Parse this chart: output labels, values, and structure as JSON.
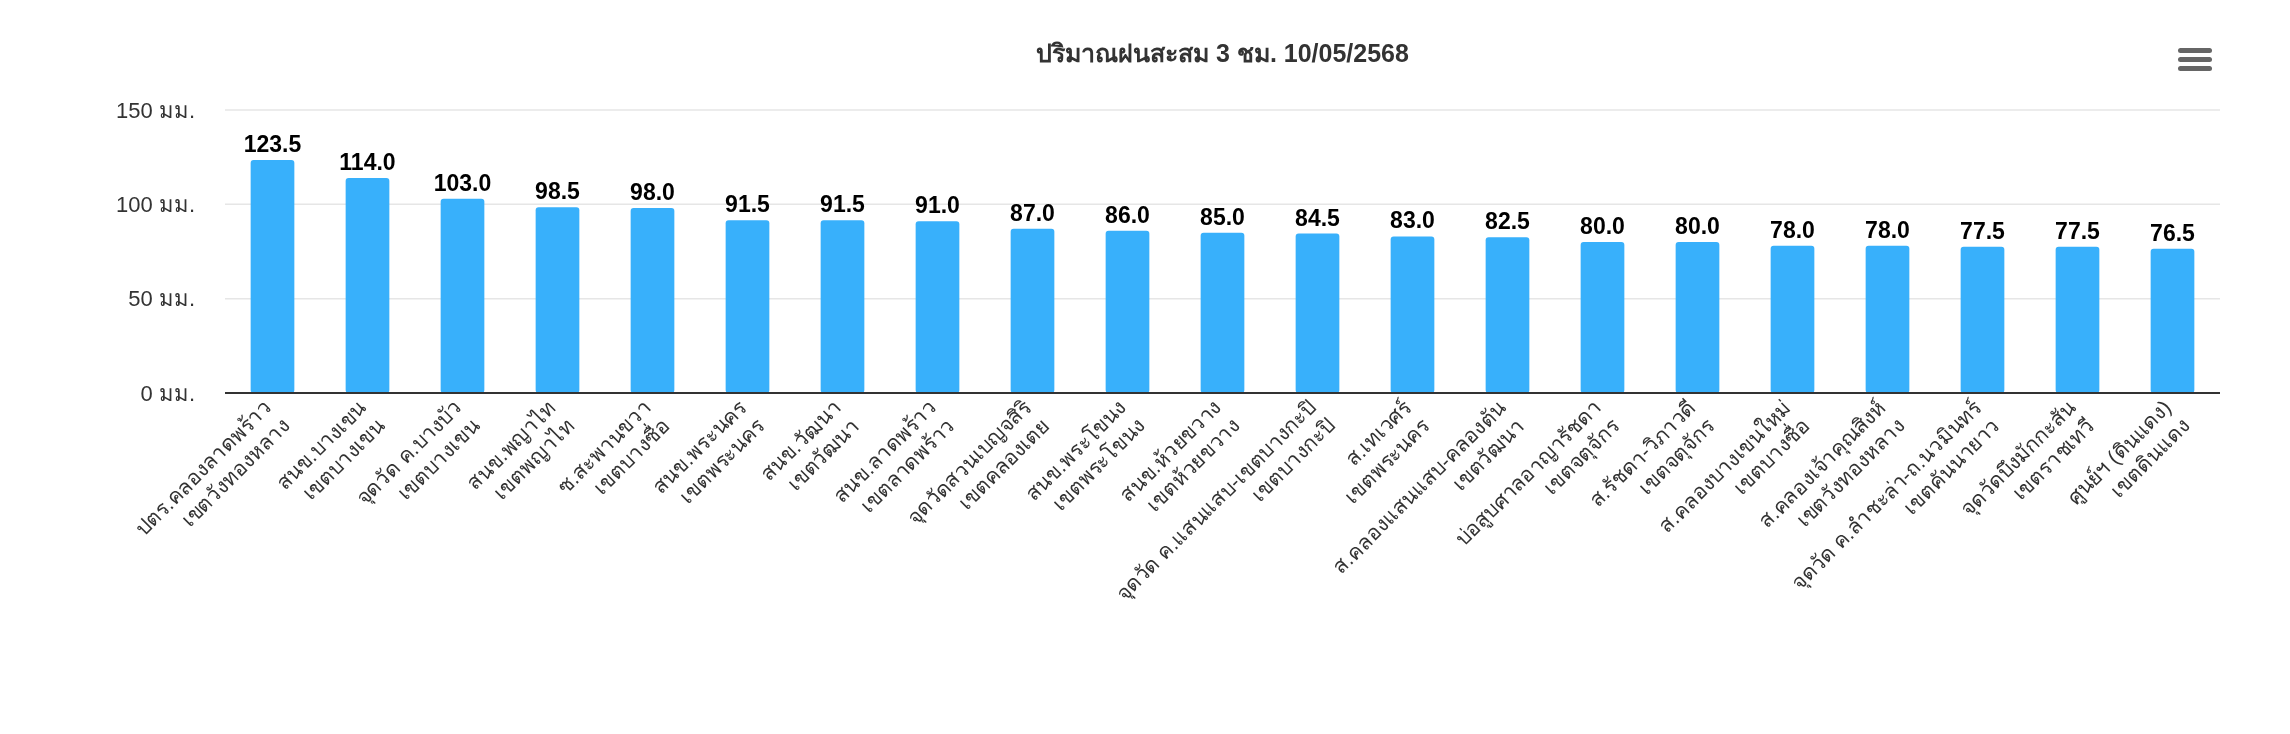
{
  "chart_data": {
    "type": "bar",
    "title": "ปริมาณฝนสะสม 3 ชม. 10/05/2568",
    "categories": [
      "ปตร.คลองลาดพร้าว\nเขตวังทองหลาง",
      "สนข.บางเขน\nเขตบางเขน",
      "จุดวัด ค.บางบัว\nเขตบางเขน",
      "สนข.พญาไท\nเขตพญาไท",
      "ซ.สะพานขวา\nเขตบางซื่อ",
      "สนข.พระนคร\nเขตพระนคร",
      "สนข.วัฒนา\nเขตวัฒนา",
      "สนข.ลาดพร้าว\nเขตลาดพร้าว",
      "จุดวัดสวนเบญจสิริ\nเขตคลองเตย",
      "สนข.พระโขนง\nเขตพระโขนง",
      "สนข.ห้วยขวาง\nเขตห้วยขวาง",
      "จุดวัด ค.แสนแสบ-เขตบางกะปิ\nเขตบางกะปิ",
      "ส.เทเวศร์\nเขตพระนคร",
      "ส.คลองแสนแสบ-คลองตัน\nเขตวัฒนา",
      "บ่อสูบศาลอาญารัชดา\nเขตจตุจักร",
      "ส.รัชดา-วิภาวดี\nเขตจตุจักร",
      "ส.คลองบางเขนใหม่\nเขตบางซื่อ",
      "ส.คลองเจ้าคุณสิงห์\nเขตวังทองหลาง",
      "จุดวัด ค.ลำชะล่า-ถ.นวมินทร์\nเขตคันนายาว",
      "จุดวัดบึงมักกะสัน\nเขตราชเทวี",
      "ศูนย์ฯ (ดินแดง)\nเขตดินแดง"
    ],
    "values": [
      123.5,
      114.0,
      103.0,
      98.5,
      98.0,
      91.5,
      91.5,
      91.0,
      87.0,
      86.0,
      85.0,
      84.5,
      83.0,
      82.5,
      80.0,
      80.0,
      78.0,
      78.0,
      77.5,
      77.5,
      76.5
    ],
    "value_labels": [
      "123.5",
      "114.0",
      "103.0",
      "98.5",
      "98.0",
      "91.5",
      "91.5",
      "91.0",
      "87.0",
      "86.0",
      "85.0",
      "84.5",
      "83.0",
      "82.5",
      "80.0",
      "80.0",
      "78.0",
      "78.0",
      "77.5",
      "77.5",
      "76.5"
    ],
    "color": "#38b0fb",
    "ylim": [
      0,
      150
    ],
    "yticks": [
      {
        "value": 0,
        "label": "0 มม."
      },
      {
        "value": 50,
        "label": "50 มม."
      },
      {
        "value": 100,
        "label": "100 มม."
      },
      {
        "value": 150,
        "label": "150 มม."
      }
    ],
    "grid": "y"
  }
}
